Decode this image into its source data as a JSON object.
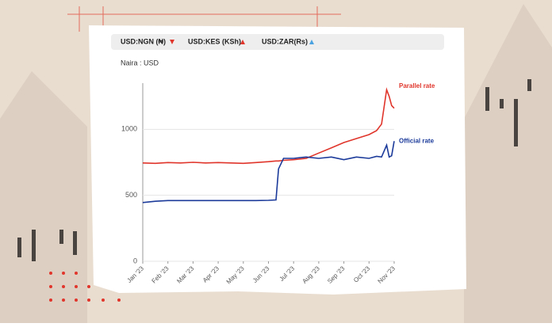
{
  "chart_data": {
    "type": "line",
    "tabs": [
      "USD:NGN (₦)",
      "USD:KES (KSh)",
      "USD:ZAR(Rs)"
    ],
    "ylabel": "Naira : USD",
    "x": [
      0,
      0.5,
      1,
      1.5,
      2,
      2.5,
      3,
      3.5,
      4,
      4.5,
      5,
      5.3,
      5.4,
      5.6,
      6,
      6.5,
      7,
      7.5,
      8,
      8.5,
      9,
      9.3,
      9.5,
      9.7,
      9.8,
      9.9,
      10
    ],
    "series": [
      {
        "name": "Parallel rate",
        "color": "#e0352b",
        "values": [
          745,
          742,
          748,
          745,
          750,
          745,
          748,
          745,
          742,
          748,
          755,
          760,
          760,
          765,
          770,
          780,
          820,
          860,
          900,
          930,
          960,
          990,
          1040,
          1300,
          1250,
          1180,
          1160
        ]
      },
      {
        "name": "Official rate",
        "color": "#1b3a9a",
        "values": [
          445,
          455,
          460,
          460,
          460,
          460,
          460,
          460,
          460,
          460,
          462,
          465,
          700,
          780,
          780,
          790,
          780,
          790,
          770,
          790,
          780,
          795,
          790,
          880,
          790,
          800,
          910
        ]
      }
    ],
    "xlim": [
      0,
      10
    ],
    "xticks": [
      {
        "value": 0,
        "label": "Jan '23"
      },
      {
        "value": 1,
        "label": "Feb '23"
      },
      {
        "value": 2,
        "label": "Mar '23"
      },
      {
        "value": 3,
        "label": "Apr '23"
      },
      {
        "value": 4,
        "label": "May '23"
      },
      {
        "value": 5,
        "label": "Jun '23"
      },
      {
        "value": 6,
        "label": "Jul '23"
      },
      {
        "value": 7,
        "label": "Aug '23"
      },
      {
        "value": 8,
        "label": "Sep '23"
      },
      {
        "value": 9,
        "label": "Oct '23"
      },
      {
        "value": 10,
        "label": "Nov '23"
      }
    ],
    "ylim": [
      0,
      1350
    ],
    "yticks": [
      0,
      500,
      1000
    ],
    "grid": true
  }
}
